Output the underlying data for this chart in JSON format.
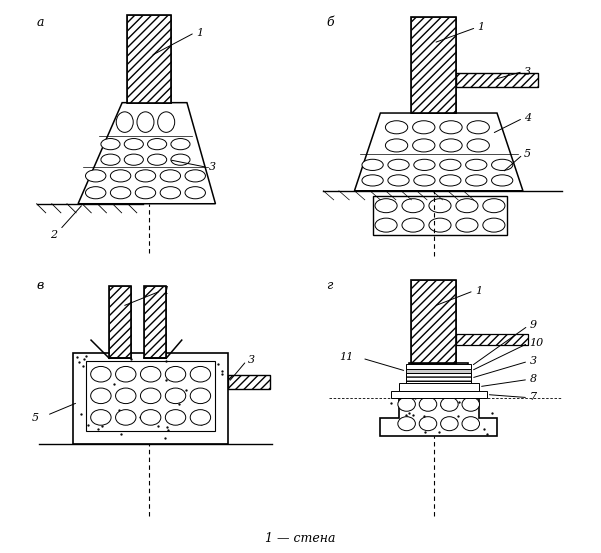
{
  "bg_color": "#ffffff",
  "line_color": "#000000",
  "title_label": "1 — стена",
  "panel_labels": [
    "а",
    "б",
    "в",
    "г"
  ],
  "figsize": [
    6.01,
    5.53
  ],
  "dpi": 100
}
